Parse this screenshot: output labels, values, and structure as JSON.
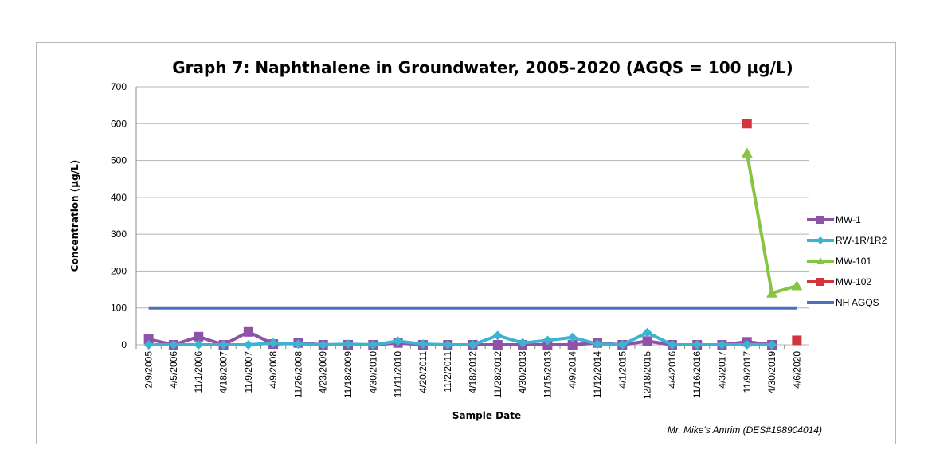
{
  "chart_data": {
    "type": "line",
    "title": "Graph 7: Naphthalene in Groundwater, 2005-2020 (AGQS = 100 µg/L)",
    "xlabel": "Sample Date",
    "ylabel": "Concentration (µg/L)",
    "ylim": [
      0,
      700
    ],
    "yticks": [
      0,
      100,
      200,
      300,
      400,
      500,
      600,
      700
    ],
    "grid": true,
    "legend_position": "right",
    "categories": [
      "2/9/2005",
      "4/5/2006",
      "11/1/2006",
      "4/18/2007",
      "11/9/2007",
      "4/9/2008",
      "11/26/2008",
      "4/23/2009",
      "11/18/2009",
      "4/30/2010",
      "11/11/2010",
      "4/20/2011",
      "11/2/2011",
      "4/18/2012",
      "11/28/2012",
      "4/30/2013",
      "11/15/2013",
      "4/9/2014",
      "11/12/2014",
      "4/1/2015",
      "12/18/2015",
      "4/4/2016",
      "11/16/2016",
      "4/3/2017",
      "11/9/2017",
      "4/30/2019",
      "4/6/2020"
    ],
    "series": [
      {
        "name": "MW-1",
        "color": "#8f52a8",
        "marker": "square",
        "values": [
          15,
          0,
          22,
          0,
          35,
          2,
          5,
          0,
          0,
          0,
          5,
          0,
          0,
          0,
          0,
          0,
          0,
          0,
          5,
          0,
          10,
          0,
          0,
          0,
          8,
          0,
          null
        ]
      },
      {
        "name": "RW-1R/1R2",
        "color": "#3cb4cf",
        "marker": "diamond",
        "values": [
          0,
          0,
          0,
          0,
          0,
          5,
          2,
          0,
          2,
          0,
          10,
          2,
          0,
          0,
          25,
          5,
          12,
          20,
          2,
          0,
          33,
          0,
          0,
          0,
          0,
          0,
          null
        ]
      },
      {
        "name": "MW-101",
        "color": "#86c444",
        "marker": "triangle",
        "values": [
          null,
          null,
          null,
          null,
          null,
          null,
          null,
          null,
          null,
          null,
          null,
          null,
          null,
          null,
          null,
          null,
          null,
          null,
          null,
          null,
          null,
          null,
          null,
          null,
          520,
          140,
          160
        ]
      },
      {
        "name": "MW-102",
        "color": "#d0363b",
        "marker": "square",
        "values": [
          null,
          null,
          null,
          null,
          null,
          null,
          null,
          null,
          null,
          null,
          null,
          null,
          null,
          null,
          null,
          null,
          null,
          null,
          null,
          null,
          null,
          null,
          null,
          null,
          600,
          null,
          12
        ]
      },
      {
        "name": "NH AGQS",
        "color": "#4a70be",
        "marker": "none",
        "values": [
          100,
          100,
          100,
          100,
          100,
          100,
          100,
          100,
          100,
          100,
          100,
          100,
          100,
          100,
          100,
          100,
          100,
          100,
          100,
          100,
          100,
          100,
          100,
          100,
          100,
          100,
          100
        ]
      }
    ],
    "annotation": "Mr. Mike's Antrim (DES#198904014)"
  }
}
